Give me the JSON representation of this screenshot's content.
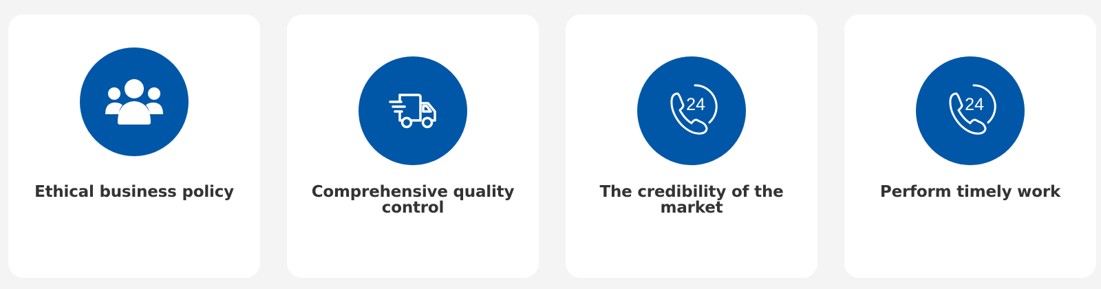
{
  "cards": [
    {
      "title": "Ethical business policy",
      "icon": "users-group-icon"
    },
    {
      "title": "Comprehensive quality control",
      "icon": "delivery-truck-icon"
    },
    {
      "title": "The credibility of the market",
      "icon": "phone-24-icon",
      "icon_text": "24"
    },
    {
      "title": "Perform timely work",
      "icon": "phone-24-icon",
      "icon_text": "24"
    }
  ],
  "colors": {
    "background": "#f4f4f4",
    "card": "#ffffff",
    "accent": "#0057a8",
    "text": "#333333"
  }
}
